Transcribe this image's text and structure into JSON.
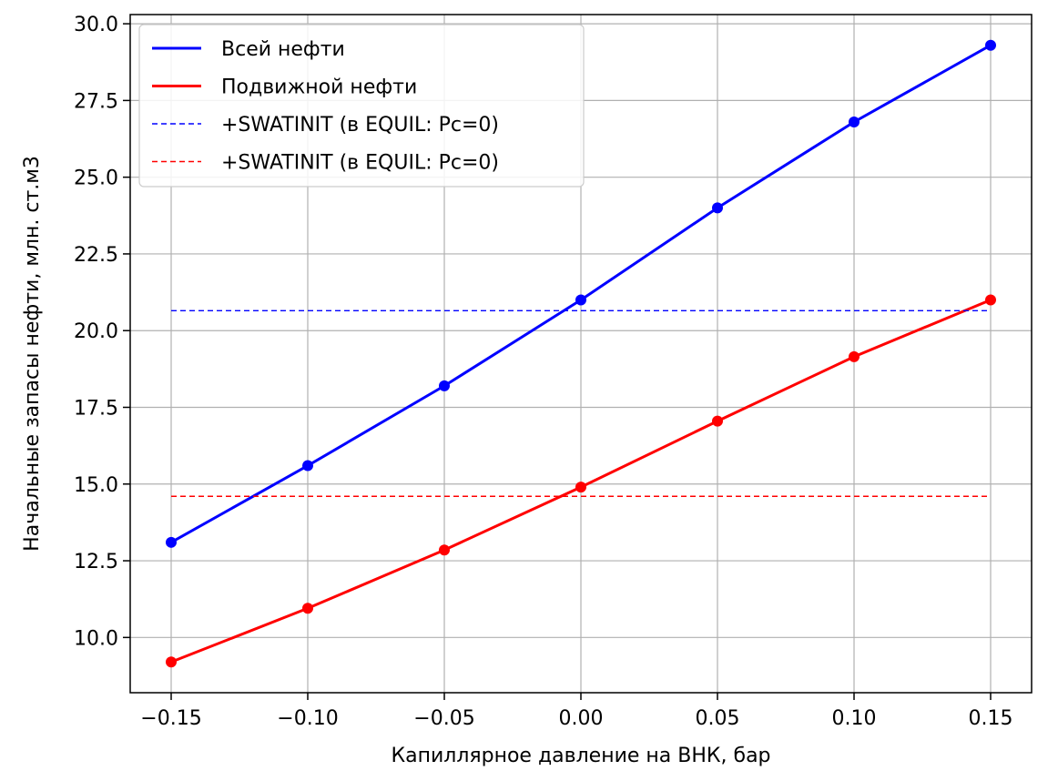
{
  "chart_data": {
    "type": "line",
    "xlabel": "Капиллярное давление на ВНК, бар",
    "ylabel": "Начальные запасы нефти, млн. ст.м3",
    "xlim": [
      -0.165,
      0.165
    ],
    "ylim": [
      8.2,
      30.3
    ],
    "x_ticks": [
      -0.15,
      -0.1,
      -0.05,
      0.0,
      0.05,
      0.1,
      0.15
    ],
    "x_tick_labels": [
      "−0.15",
      "−0.10",
      "−0.05",
      "0.00",
      "0.05",
      "0.10",
      "0.15"
    ],
    "y_ticks": [
      10.0,
      12.5,
      15.0,
      17.5,
      20.0,
      22.5,
      25.0,
      27.5,
      30.0
    ],
    "y_tick_labels": [
      "10.0",
      "12.5",
      "15.0",
      "17.5",
      "20.0",
      "22.5",
      "25.0",
      "27.5",
      "30.0"
    ],
    "grid": true,
    "legend_position": "top-left",
    "x": [
      -0.15,
      -0.1,
      -0.05,
      0.0,
      0.05,
      0.1,
      0.15
    ],
    "series": [
      {
        "name": "Всей нефти",
        "color": "#0000ff",
        "style": "solid",
        "markers": true,
        "values": [
          13.1,
          15.6,
          18.2,
          21.0,
          24.0,
          26.8,
          29.3
        ]
      },
      {
        "name": "Подвижной нефти",
        "color": "#ff0000",
        "style": "solid",
        "markers": true,
        "values": [
          9.2,
          10.95,
          12.85,
          14.9,
          17.05,
          19.15,
          21.0
        ]
      },
      {
        "name": "+SWATINIT (в EQUIL: Pc=0)",
        "color": "#0000ff",
        "style": "dashed",
        "markers": false,
        "values": [
          20.65,
          20.65,
          20.65,
          20.65,
          20.65,
          20.65,
          20.65
        ]
      },
      {
        "name": "+SWATINIT (в EQUIL: Pc=0)",
        "color": "#ff0000",
        "style": "dashed",
        "markers": false,
        "values": [
          14.6,
          14.6,
          14.6,
          14.6,
          14.6,
          14.6,
          14.6
        ]
      }
    ]
  }
}
